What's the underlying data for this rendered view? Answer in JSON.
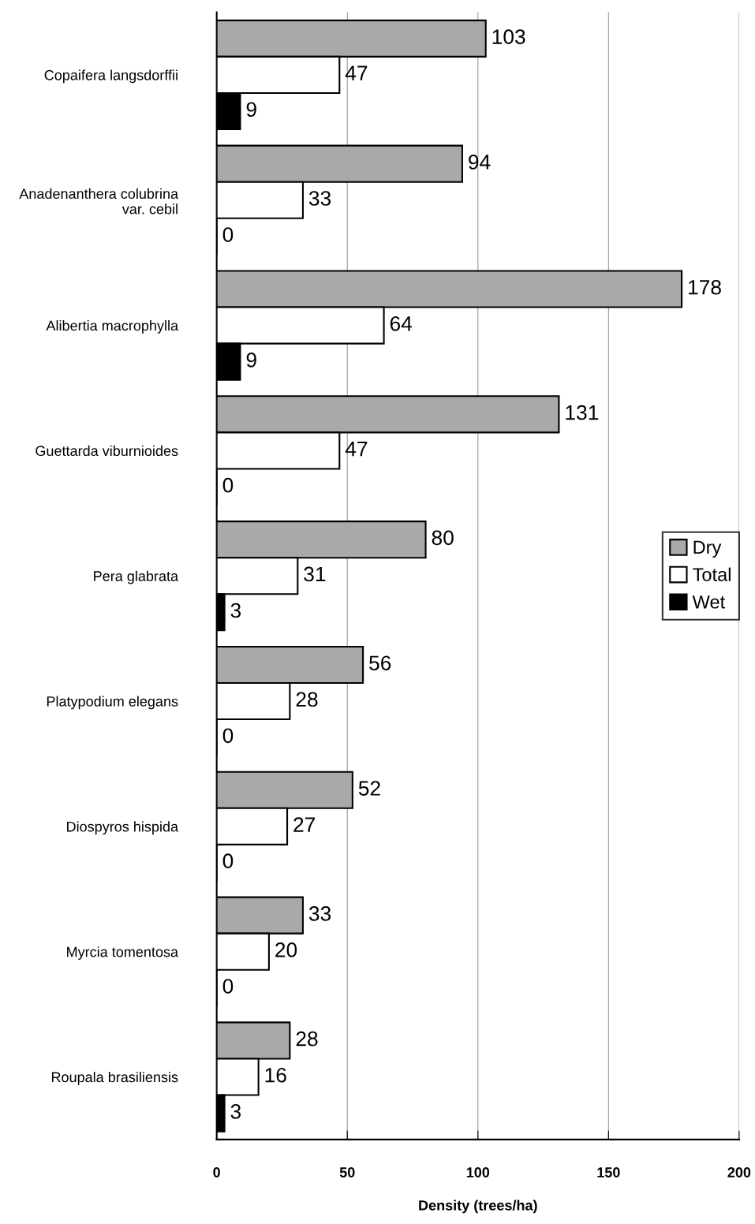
{
  "chart_data": {
    "type": "bar",
    "orientation": "horizontal",
    "xlabel": "Density (trees/ha)",
    "categories": [
      "Copaifera langsdorffii",
      "Anadenanthera colubrina\nvar. cebil",
      "Alibertia macrophylla",
      "Guettarda viburnioides",
      "Pera glabrata",
      "Platypodium elegans",
      "Diospyros hispida",
      "Myrcia tomentosa",
      "Roupala brasiliensis"
    ],
    "series": [
      {
        "name": "Dry",
        "color": "#a9a9a9",
        "values": [
          103,
          94,
          178,
          131,
          80,
          56,
          52,
          33,
          28
        ]
      },
      {
        "name": "Total",
        "color": "#ffffff",
        "values": [
          47,
          33,
          64,
          47,
          31,
          28,
          27,
          20,
          16
        ]
      },
      {
        "name": "Wet",
        "color": "#000000",
        "values": [
          9,
          0,
          9,
          0,
          3,
          0,
          0,
          0,
          3
        ]
      }
    ],
    "xlim": [
      0,
      200
    ],
    "xticks": [
      0,
      50,
      100,
      150,
      200
    ],
    "grid": "x",
    "legend": "right",
    "data_labels": true
  }
}
